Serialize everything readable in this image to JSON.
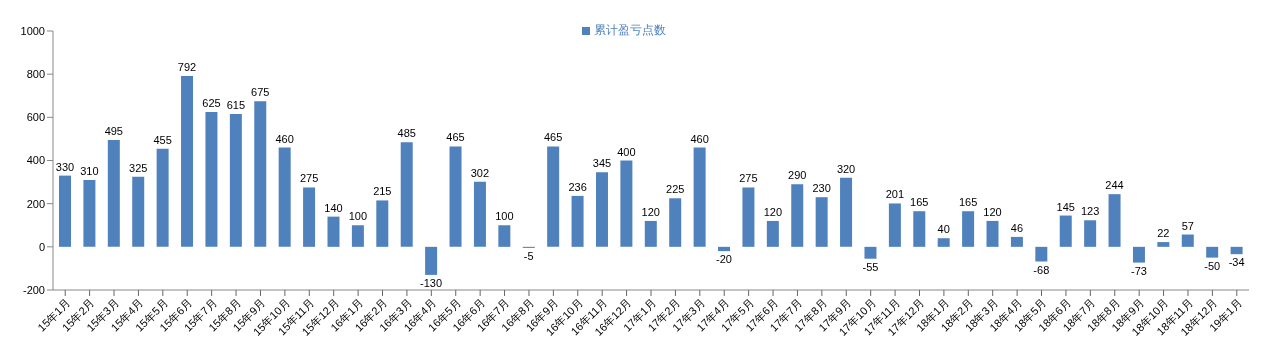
{
  "chart_data": {
    "type": "bar",
    "categories": [
      "15年1月",
      "15年2月",
      "15年3月",
      "15年4月",
      "15年5月",
      "15年6月",
      "15年7月",
      "15年8月",
      "15年9月",
      "15年10月",
      "15年11月",
      "15年12月",
      "16年1月",
      "16年2月",
      "16年3月",
      "16年4月",
      "16年5月",
      "16年6月",
      "16年7月",
      "16年8月",
      "16年9月",
      "16年10月",
      "16年11月",
      "16年12月",
      "17年1月",
      "17年2月",
      "17年3月",
      "17年4月",
      "17年5月",
      "17年6月",
      "17年7月",
      "17年8月",
      "17年9月",
      "17年10月",
      "17年11月",
      "17年12月",
      "18年1月",
      "18年2月",
      "18年3月",
      "18年4月",
      "18年5月",
      "18年6月",
      "18年7月",
      "18年8月",
      "18年9月",
      "18年10月",
      "18年11月",
      "18年12月",
      "19年1月"
    ],
    "series": [
      {
        "name": "累计盈亏点数",
        "color": "#4f81bd",
        "values": [
          330,
          310,
          495,
          325,
          455,
          792,
          625,
          615,
          675,
          460,
          275,
          140,
          100,
          215,
          485,
          -130,
          465,
          302,
          100,
          -5,
          465,
          236,
          345,
          400,
          120,
          225,
          460,
          -20,
          275,
          120,
          290,
          230,
          320,
          -55,
          201,
          165,
          40,
          165,
          120,
          46,
          -68,
          145,
          123,
          244,
          -73,
          22,
          57,
          -50,
          -34
        ]
      }
    ],
    "ylim": [
      -200,
      1000
    ],
    "yticks": [
      -200,
      0,
      200,
      400,
      600,
      800,
      1000
    ],
    "grid": false,
    "legend": "top",
    "data_labels": true
  }
}
